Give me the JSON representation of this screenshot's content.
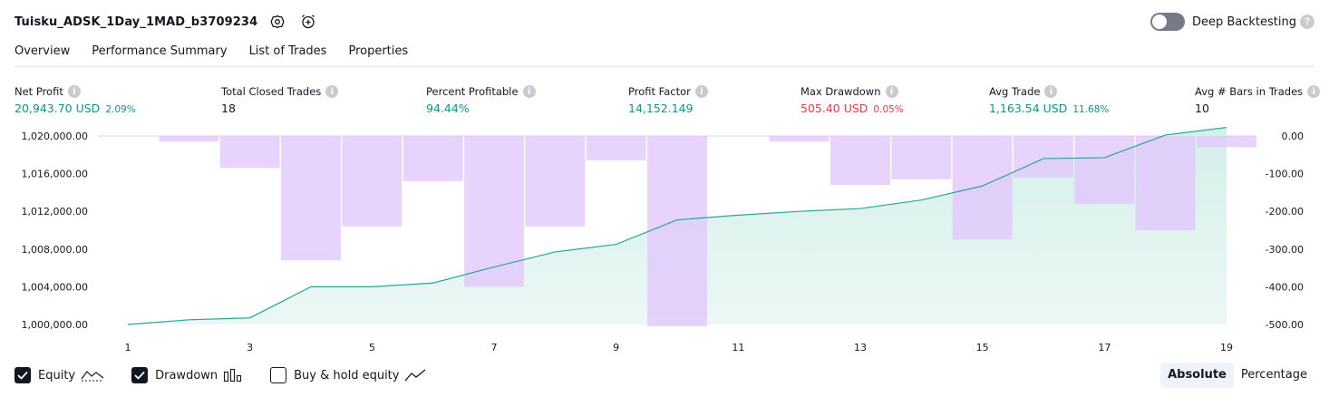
{
  "header": {
    "title": "Tuisku_ADSK_1Day_1MAD_b3709234",
    "deep_backtesting_label": "Deep Backtesting"
  },
  "tabs": [
    {
      "label": "Overview",
      "active": true
    },
    {
      "label": "Performance Summary",
      "active": false
    },
    {
      "label": "List of Trades",
      "active": false
    },
    {
      "label": "Properties",
      "active": false
    }
  ],
  "metrics": [
    {
      "label": "Net Profit",
      "value": "20,943.70 USD",
      "pct": "2.09%",
      "color": "#089981"
    },
    {
      "label": "Total Closed Trades",
      "value": "18",
      "pct": "",
      "color": "#131722"
    },
    {
      "label": "Percent Profitable",
      "value": "94.44%",
      "pct": "",
      "color": "#089981"
    },
    {
      "label": "Profit Factor",
      "value": "14,152.149",
      "pct": "",
      "color": "#089981"
    },
    {
      "label": "Max Drawdown",
      "value": "505.40 USD",
      "pct": "0.05%",
      "color": "#f23645"
    },
    {
      "label": "Avg Trade",
      "value": "1,163.54 USD",
      "pct": "11.68%",
      "color": "#089981"
    },
    {
      "label": "Avg # Bars in Trades",
      "value": "10",
      "pct": "",
      "color": "#131722"
    }
  ],
  "legend": {
    "equity_label": "Equity",
    "equity_checked": true,
    "drawdown_label": "Drawdown",
    "drawdown_checked": true,
    "buyhold_label": "Buy & hold equity",
    "buyhold_checked": false
  },
  "mode": {
    "absolute_label": "Absolute",
    "percentage_label": "Percentage",
    "selected": "Absolute"
  },
  "colors": {
    "equity_line": "#26a69a",
    "equity_fill": "#d4efe9",
    "drawdown_bar": "#e1c6fd",
    "overlap_bar": "#b9bcf0",
    "positive": "#089981",
    "negative": "#f23645"
  },
  "chart_data": {
    "type": "line",
    "x_ticks": [
      "1",
      "3",
      "5",
      "7",
      "9",
      "11",
      "13",
      "15",
      "17",
      "19"
    ],
    "y_left": {
      "range": [
        1000000,
        1020000
      ],
      "ticks": [
        "1,000,000.00",
        "1,004,000.00",
        "1,008,000.00",
        "1,012,000.00",
        "1,016,000.00",
        "1,020,000.00"
      ]
    },
    "y_right": {
      "range": [
        -500,
        0
      ],
      "ticks": [
        "0.00",
        "-100.00",
        "-200.00",
        "-300.00",
        "-400.00",
        "-500.00"
      ]
    },
    "series": [
      {
        "type": "line",
        "axis": "left",
        "x": [
          1,
          2,
          3,
          4,
          5,
          6,
          7,
          8,
          9,
          10,
          11,
          12,
          13,
          14,
          15,
          16,
          17,
          18,
          19
        ],
        "values": [
          1000000,
          1000500,
          1000700,
          1004000,
          1004000,
          1004400,
          1006100,
          1007700,
          1008500,
          1011100,
          1011600,
          1012000,
          1012300,
          1013200,
          1014700,
          1017600,
          1017700,
          1020100,
          1020900
        ]
      },
      {
        "type": "bar",
        "axis": "right",
        "x": [
          1,
          2,
          3,
          4,
          5,
          6,
          7,
          8,
          9,
          10,
          11,
          12,
          13,
          14,
          15,
          16,
          17,
          18,
          19
        ],
        "values": [
          0,
          -15,
          -85,
          -330,
          -240,
          -120,
          -400,
          -240,
          -65,
          -505,
          0,
          -15,
          -130,
          -115,
          -275,
          -110,
          -180,
          -250,
          -30
        ]
      }
    ]
  }
}
